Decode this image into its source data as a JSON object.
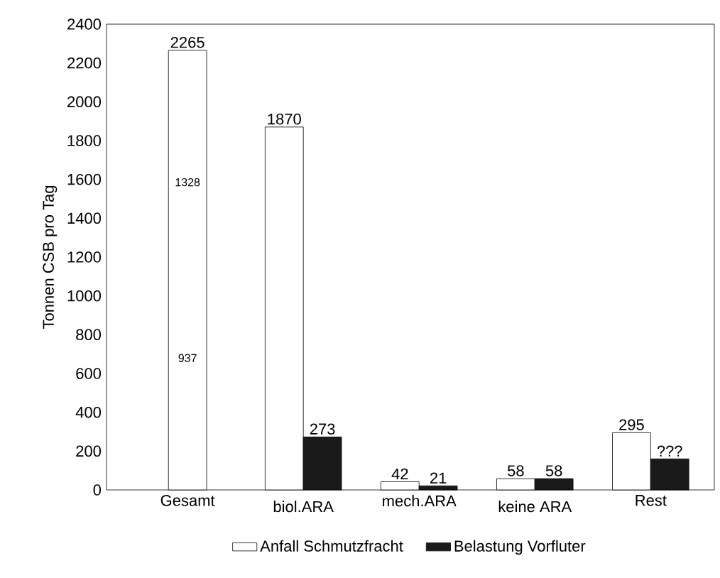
{
  "chart_data": {
    "type": "bar",
    "ylabel": "Tonnen CSB pro Tag",
    "categories": [
      "Gesamt",
      "biol.ARA",
      "mech.ARA",
      "keine ARA",
      "Rest"
    ],
    "series": [
      {
        "name": "Anfall Schmutzfracht",
        "color": "#ffffff",
        "values": [
          2265,
          1870,
          42,
          58,
          295
        ],
        "value_labels": [
          "2265",
          "1870",
          "42",
          "58",
          "295"
        ]
      },
      {
        "name": "Belastung Vorfluter",
        "color": "#1a1a1a",
        "values": [
          null,
          273,
          21,
          58,
          160
        ],
        "value_labels": [
          null,
          "273",
          "21",
          "58",
          "???"
        ]
      }
    ],
    "annotations": [
      "1328",
      "937"
    ],
    "ylim": [
      0,
      2400
    ],
    "yticks": [
      0,
      200,
      400,
      600,
      800,
      1000,
      1200,
      1400,
      1600,
      1800,
      2000,
      2200,
      2400
    ],
    "grid": false,
    "legend": "bottom"
  }
}
